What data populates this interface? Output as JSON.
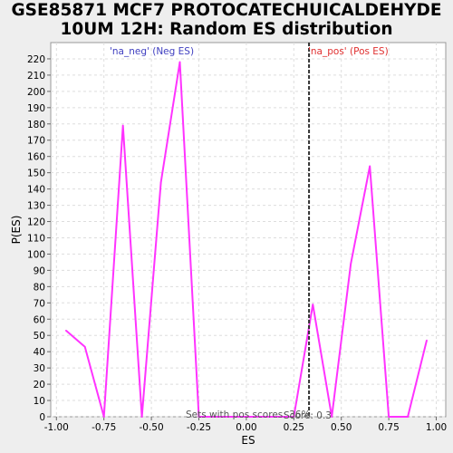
{
  "title_lines": [
    "GSE85871 MCF7 PROTOCATECHUICALDEHYDE",
    "10UM 12H: Random ES distribution"
  ],
  "chart_data": {
    "type": "line",
    "xlabel": "ES",
    "ylabel": "P(ES)",
    "xlim": [
      -1.03,
      1.05
    ],
    "ylim": [
      0,
      230
    ],
    "xticks": [
      -1.0,
      -0.75,
      -0.5,
      -0.25,
      0.0,
      0.25,
      0.5,
      0.75,
      1.0
    ],
    "xtick_labels": [
      "-1.00",
      "-0.75",
      "-0.50",
      "-0.25",
      "0.00",
      "0.25",
      "0.50",
      "0.75",
      "1.00"
    ],
    "yticks": [
      0,
      10,
      20,
      30,
      40,
      50,
      60,
      70,
      80,
      90,
      100,
      110,
      120,
      130,
      140,
      150,
      160,
      170,
      180,
      190,
      200,
      210,
      220
    ],
    "grid": true,
    "series": [
      {
        "color": "#ff33ff",
        "x": [
          -0.95,
          -0.85,
          -0.75,
          -0.65,
          -0.55,
          -0.45,
          -0.35,
          -0.25,
          -0.15,
          -0.05,
          0.05,
          0.15,
          0.25,
          0.35,
          0.45,
          0.55,
          0.65,
          0.75,
          0.85,
          0.95
        ],
        "y": [
          53,
          43,
          0,
          179,
          0,
          144,
          218,
          0,
          0,
          0,
          0,
          0,
          0,
          69,
          0,
          94,
          154,
          0,
          0,
          47
        ]
      }
    ],
    "marker_line": {
      "x": 0.33,
      "color": "#333333",
      "style": "dashed"
    },
    "annotations": {
      "neg_label": "'na_neg' (Neg ES)",
      "neg_color": "#4040c0",
      "pos_label": "'na_pos' (Pos ES)",
      "pos_color": "#e03030",
      "bottom_text": "Sets with pos scores: 36%",
      "bottom_text_overlap": "Score: 0.3"
    }
  }
}
